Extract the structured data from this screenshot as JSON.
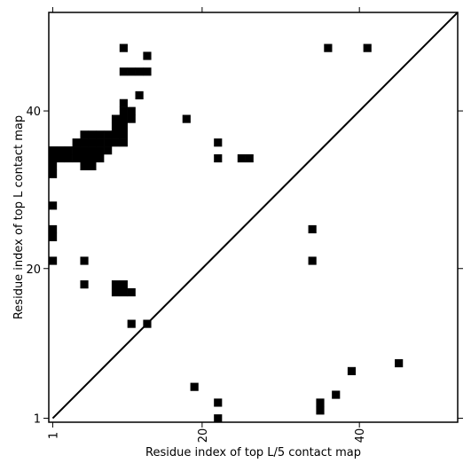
{
  "chart_data": {
    "type": "heatmap",
    "title": "",
    "xlabel": "Residue index of top L/5 contact map",
    "ylabel": "Residue index of top L contact map",
    "xlim": [
      0.5,
      52.5
    ],
    "ylim": [
      0.5,
      52.5
    ],
    "ticks": [
      1,
      20,
      40
    ],
    "grid": false,
    "legend": "none",
    "diagonal_line": true,
    "colors": {
      "contact": "#000000",
      "background": "#ffffff",
      "axis": "#000000"
    },
    "upper_triangle_contacts": [
      [
        1,
        32
      ],
      [
        1,
        33
      ],
      [
        1,
        34
      ],
      [
        1,
        35
      ],
      [
        1,
        28
      ],
      [
        1,
        25
      ],
      [
        1,
        24
      ],
      [
        1,
        21
      ],
      [
        2,
        34
      ],
      [
        2,
        35
      ],
      [
        3,
        34
      ],
      [
        3,
        35
      ],
      [
        4,
        34
      ],
      [
        4,
        35
      ],
      [
        4,
        36
      ],
      [
        5,
        33
      ],
      [
        5,
        34
      ],
      [
        5,
        35
      ],
      [
        5,
        36
      ],
      [
        5,
        37
      ],
      [
        6,
        33
      ],
      [
        6,
        34
      ],
      [
        6,
        35
      ],
      [
        6,
        36
      ],
      [
        6,
        37
      ],
      [
        7,
        34
      ],
      [
        7,
        35
      ],
      [
        7,
        36
      ],
      [
        7,
        37
      ],
      [
        8,
        35
      ],
      [
        8,
        36
      ],
      [
        8,
        37
      ],
      [
        9,
        36
      ],
      [
        9,
        37
      ],
      [
        9,
        38
      ],
      [
        9,
        39
      ],
      [
        10,
        36
      ],
      [
        10,
        37
      ],
      [
        10,
        38
      ],
      [
        10,
        39
      ],
      [
        10,
        40
      ],
      [
        10,
        41
      ],
      [
        10,
        45
      ],
      [
        10,
        48
      ],
      [
        11,
        39
      ],
      [
        11,
        40
      ],
      [
        11,
        45
      ],
      [
        12,
        42
      ],
      [
        12,
        45
      ],
      [
        13,
        45
      ],
      [
        13,
        47
      ],
      [
        18,
        39
      ],
      [
        22,
        36
      ],
      [
        22,
        34
      ],
      [
        25,
        34
      ],
      [
        26,
        34
      ],
      [
        34,
        25
      ],
      [
        34,
        21
      ],
      [
        36,
        48
      ],
      [
        41,
        48
      ],
      [
        5,
        21
      ],
      [
        5,
        18
      ],
      [
        9,
        18
      ],
      [
        9,
        17
      ],
      [
        10,
        18
      ],
      [
        10,
        17
      ],
      [
        11,
        17
      ],
      [
        11,
        13
      ],
      [
        13,
        13
      ]
    ],
    "lower_triangle_contacts": [
      [
        19,
        5
      ],
      [
        22,
        3
      ],
      [
        22,
        1
      ],
      [
        35,
        3
      ],
      [
        35,
        2
      ],
      [
        37,
        4
      ],
      [
        39,
        7
      ],
      [
        45,
        8
      ]
    ]
  }
}
